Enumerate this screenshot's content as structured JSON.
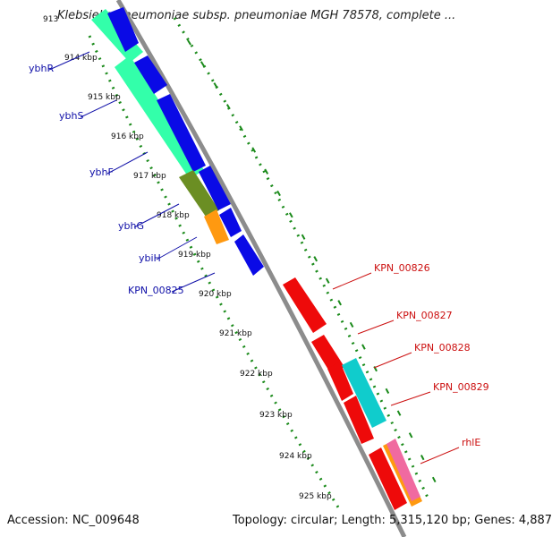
{
  "header": {
    "title": "Klebsiella pneumoniae subsp. pneumoniae MGH 78578, complete ..."
  },
  "footer": {
    "accession": "Accession: NC_009648",
    "topology": "Topology: circular; Length: 5,315,120 bp; Genes: 4,887"
  },
  "colors": {
    "forward_label": "#1010a8",
    "reverse_label": "#cc1010",
    "backbone": "#888888",
    "gc_ticks": "#1a8a1a",
    "blue": "#0a0ae6",
    "teal": "#33ffaa",
    "olive": "#6b8e23",
    "orange": "#ff9910",
    "red": "#ee0a0a",
    "cyan": "#10cccc"
  },
  "scale": {
    "labels": [
      "913",
      "914 kbp",
      "915 kbp",
      "916 kbp",
      "917 kbp",
      "918 kbp",
      "919 kbp",
      "920 kbp",
      "921 kbp",
      "922 kbp",
      "923 kbp",
      "924 kbp",
      "925 kbp"
    ]
  },
  "gene_labels_forward": [
    "ybhR",
    "ybhS",
    "ybhF",
    "ybhG",
    "ybiH",
    "KPN_00825"
  ],
  "gene_labels_reverse": [
    "KPN_00826",
    "KPN_00827",
    "KPN_00828",
    "KPN_00829",
    "rhlE"
  ]
}
